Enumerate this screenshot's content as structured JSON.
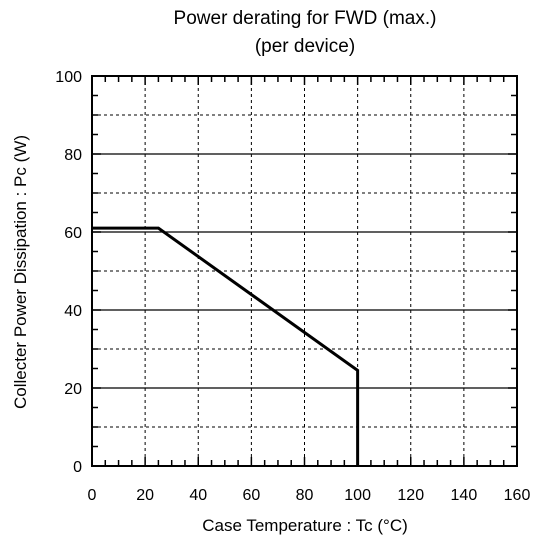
{
  "chart_data": {
    "type": "line",
    "title": "Power derating for FWD (max.)",
    "subtitle": "(per device)",
    "xlabel": "Case Temperature : Tc (°C)",
    "ylabel": "Collecter Power Dissipation : Pc (W)",
    "xlim": [
      0,
      160
    ],
    "ylim": [
      0,
      100
    ],
    "xticks": [
      0,
      20,
      40,
      60,
      80,
      100,
      120,
      140,
      160
    ],
    "yticks": [
      0,
      20,
      40,
      60,
      80,
      100
    ],
    "grid": true,
    "series": [
      {
        "x": [
          0,
          25,
          100,
          100
        ],
        "y": [
          61,
          61,
          24.5,
          0
        ]
      }
    ]
  }
}
